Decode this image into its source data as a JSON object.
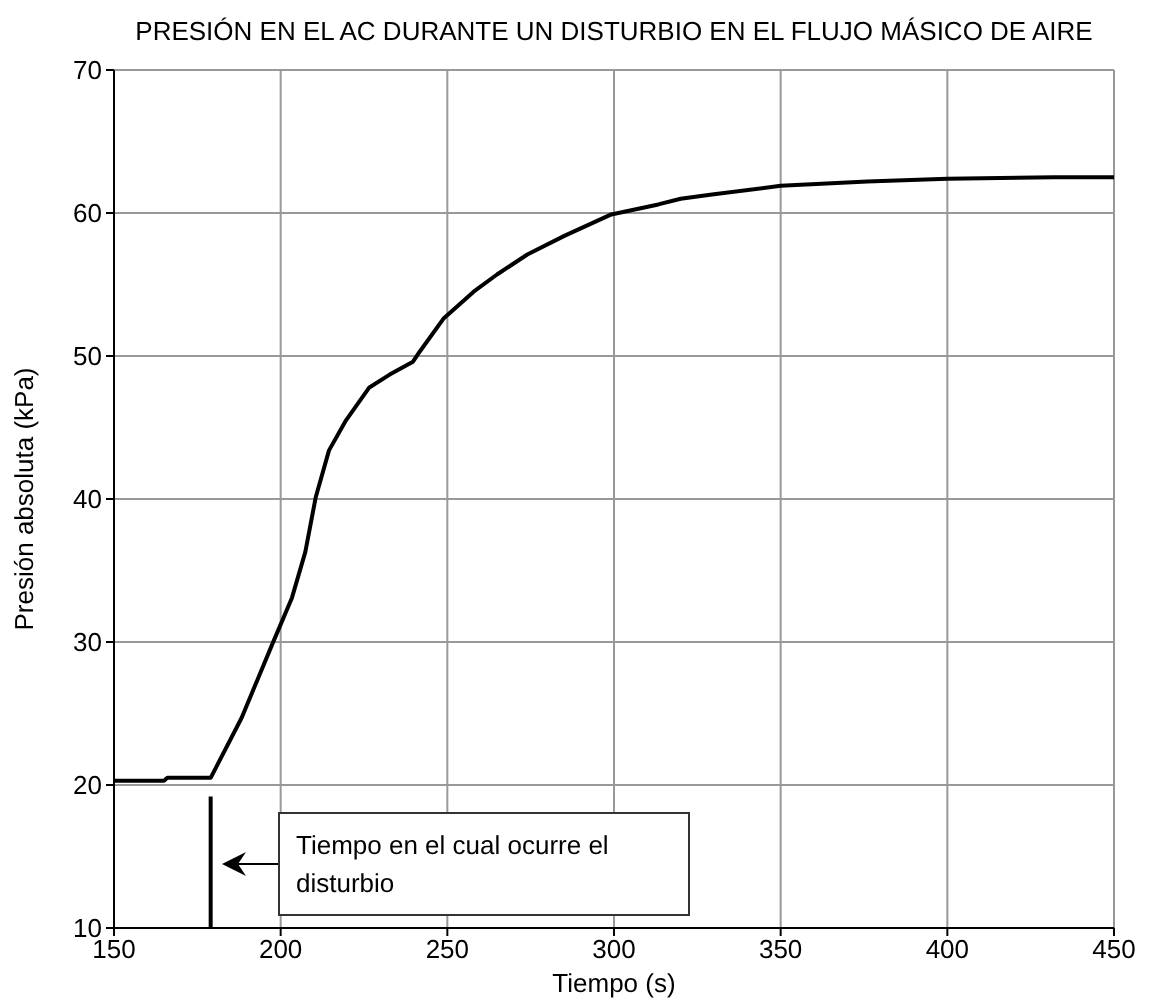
{
  "chart_data": {
    "type": "line",
    "title": "PRESIÓN EN EL AC DURANTE UN DISTURBIO EN EL FLUJO MÁSICO DE AIRE",
    "xlabel": "Tiempo (s)",
    "ylabel": "Presión absoluta  (kPa)",
    "xlim": [
      150,
      450
    ],
    "xticks": [
      150,
      200,
      250,
      300,
      350,
      400,
      450
    ],
    "ylim": [
      10,
      70
    ],
    "yticks": [
      10,
      20,
      30,
      40,
      50,
      60,
      70
    ],
    "grid": true,
    "marker": "none",
    "line_style": "solid",
    "series": [
      {
        "color": "#000000",
        "x": [
          150,
          165,
          166,
          179,
          188.3,
          197.4,
          203.4,
          207.4,
          210.5,
          214.5,
          219.6,
          226.6,
          232.7,
          239.7,
          241.7,
          248.8,
          257.9,
          264.9,
          274,
          285.1,
          299.2,
          313.3,
          320,
          329.4,
          350,
          376,
          400,
          432,
          450
        ],
        "values": [
          20.3,
          20.3,
          20.5,
          20.5,
          24.7,
          29.8,
          33.1,
          36.3,
          40.1,
          43.4,
          45.5,
          47.8,
          48.7,
          49.6,
          50.3,
          52.6,
          54.5,
          55.7,
          57.1,
          58.4,
          59.9,
          60.6,
          61.0,
          61.3,
          61.9,
          62.2,
          62.4,
          62.5,
          62.5
        ]
      },
      {
        "color": "#000000",
        "x": [
          179,
          179
        ],
        "values": [
          10,
          19.2
        ]
      }
    ],
    "annotations": [
      "Tiempo en el cual ocurre el disturbio"
    ]
  }
}
